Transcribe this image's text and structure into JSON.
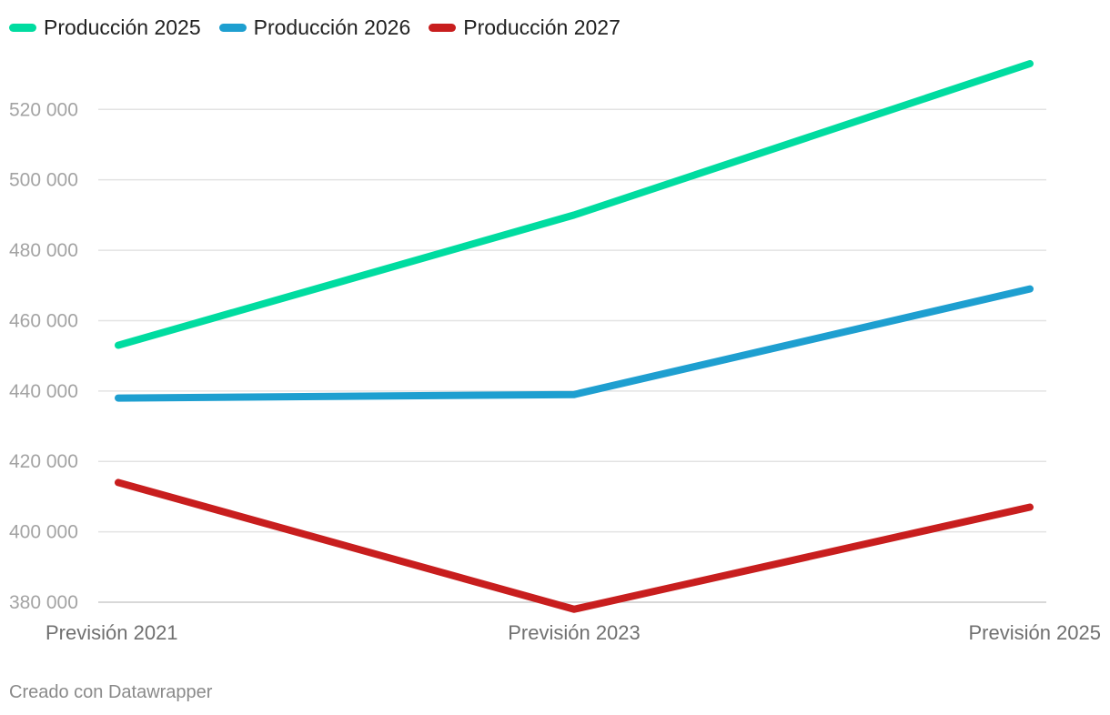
{
  "chart_data": {
    "type": "line",
    "categories": [
      "Previsión 2021",
      "Previsión 2023",
      "Previsión 2025"
    ],
    "series": [
      {
        "name": "Producción 2025",
        "color": "#00dca0",
        "values": [
          453000,
          490000,
          533000
        ]
      },
      {
        "name": "Producción 2026",
        "color": "#1e9fd0",
        "values": [
          438000,
          439000,
          469000
        ]
      },
      {
        "name": "Producción 2027",
        "color": "#c81e1e",
        "values": [
          414000,
          378000,
          407000
        ]
      }
    ],
    "yticks": [
      380000,
      400000,
      420000,
      440000,
      460000,
      480000,
      500000,
      520000
    ],
    "ytick_labels": [
      "380 000",
      "400 000",
      "420 000",
      "440 000",
      "460 000",
      "480 000",
      "500 000",
      "520 000"
    ],
    "ylim": [
      380000,
      533000
    ],
    "grid": true,
    "legend_position": "top-left"
  },
  "credit": "Creado con Datawrapper"
}
